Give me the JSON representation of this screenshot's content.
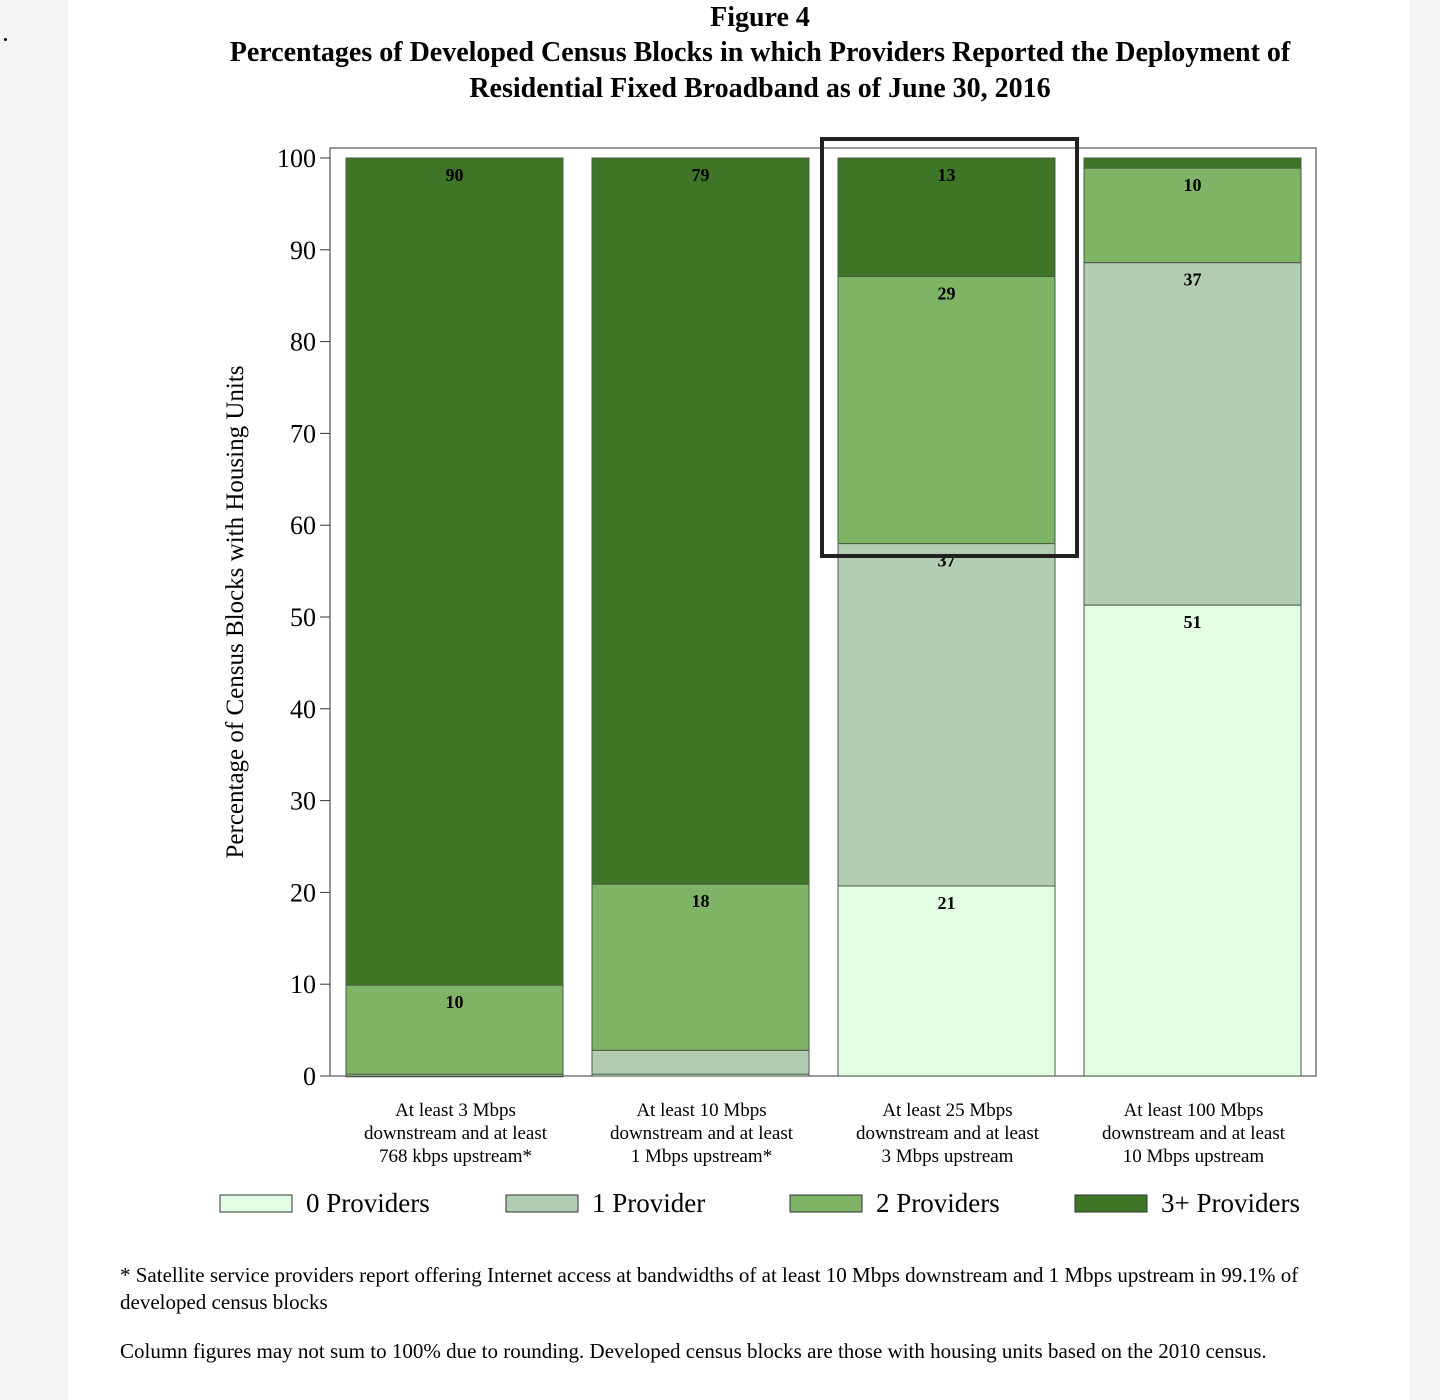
{
  "figure_label": "Figure 4",
  "chart_data": {
    "type": "bar",
    "stacked": true,
    "title": "Percentages of Developed Census Blocks in which Providers Reported the Deployment of Residential Fixed Broadband as of June 30, 2016",
    "title_lines": [
      "Percentages of Developed Census Blocks in which Providers Reported the Deployment of",
      "Residential Fixed Broadband as of June 30, 2016"
    ],
    "xlabel": "",
    "ylabel": "Percentage of Census Blocks with Housing Units",
    "ylim": [
      0,
      100
    ],
    "yticks": [
      0,
      10,
      20,
      30,
      40,
      50,
      60,
      70,
      80,
      90,
      100
    ],
    "grid": false,
    "legend_position": "bottom",
    "categories": [
      [
        "At least 3 Mbps",
        "downstream and at least",
        "768 kbps upstream*"
      ],
      [
        "At least 10 Mbps",
        "downstream and at least",
        "1 Mbps upstream*"
      ],
      [
        "At least 25 Mbps",
        "downstream and at least",
        "3 Mbps upstream"
      ],
      [
        "At least 100 Mbps",
        "downstream and at least",
        "10 Mbps upstream"
      ]
    ],
    "series": [
      {
        "name": "0 Providers",
        "color": "#e2fde2",
        "values": [
          0,
          0.2,
          20.7,
          51.3
        ],
        "labels": [
          "",
          "",
          "21",
          "51"
        ]
      },
      {
        "name": "1 Provider",
        "color": "#b2cdb2",
        "values": [
          0.2,
          2.6,
          37.3,
          37.3
        ],
        "labels": [
          "",
          "",
          "37",
          "37"
        ]
      },
      {
        "name": "2 Providers",
        "color": "#7fb366",
        "values": [
          9.7,
          18.1,
          29.1,
          10.3
        ],
        "labels": [
          "10",
          "18",
          "29",
          "10"
        ]
      },
      {
        "name": "3+ Providers",
        "color": "#3f7527",
        "values": [
          90.1,
          79.1,
          12.9,
          1.1
        ],
        "labels": [
          "90",
          "79",
          "13",
          ""
        ]
      }
    ],
    "highlighted_category_index": 2
  },
  "notes": [
    "* Satellite service providers report offering Internet access at bandwidths of at least 10 Mbps downstream and 1 Mbps upstream in 99.1% of developed census blocks",
    "Column figures may not sum to 100% due to rounding.  Developed census blocks are those with housing units based on the 2010 census."
  ]
}
